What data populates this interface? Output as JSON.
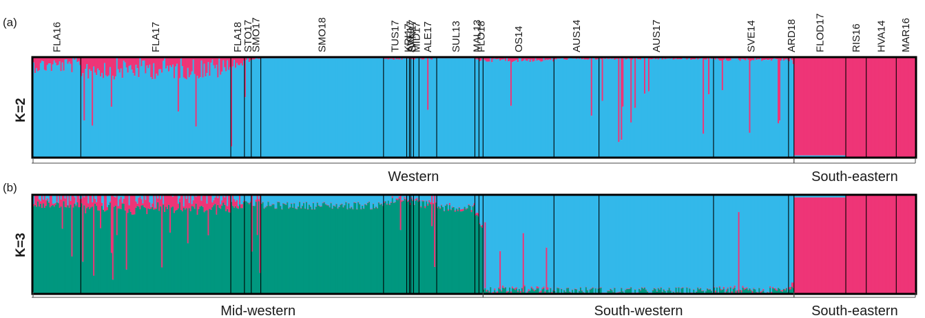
{
  "panel_labels": [
    "(a)",
    "(b)"
  ],
  "colors": {
    "blue": "#33b8ea",
    "pink": "#ee3577",
    "green": "#00977f",
    "frame": "#000000"
  },
  "chart_data": {
    "type": "bar",
    "stacked": true,
    "description_source": "STRUCTURE admixture barplot, two panels sharing population order",
    "populations": [
      {
        "name": "FLA16",
        "n": 35
      },
      {
        "name": "FLA17",
        "n": 110
      },
      {
        "name": "FLA18",
        "n": 10
      },
      {
        "name": "STO17",
        "n": 5
      },
      {
        "name": "SMO17",
        "n": 7
      },
      {
        "name": "SMO18",
        "n": 90
      },
      {
        "name": "TUS17",
        "n": 17
      },
      {
        "name": "KRI17",
        "n": 2
      },
      {
        "name": "AVE17",
        "n": 1
      },
      {
        "name": "SAN17",
        "n": 2
      },
      {
        "name": "MID17",
        "n": 4
      },
      {
        "name": "ALE17",
        "n": 13
      },
      {
        "name": "SUL13",
        "n": 28
      },
      {
        "name": "MAL13",
        "n": 3
      },
      {
        "name": "FLO18",
        "n": 3
      },
      {
        "name": "OS14",
        "n": 52
      },
      {
        "name": "AUS14",
        "n": 33
      },
      {
        "name": "AUS17",
        "n": 84
      },
      {
        "name": "SVE14",
        "n": 55
      },
      {
        "name": "ARD18",
        "n": 4
      },
      {
        "name": "FLOD17",
        "n": 38
      },
      {
        "name": "RIS16",
        "n": 15
      },
      {
        "name": "HVA14",
        "n": 22
      },
      {
        "name": "MAR16",
        "n": 14
      }
    ],
    "panels": [
      {
        "label": "K=2",
        "clusters": [
          "blue",
          "pink"
        ],
        "population_means": [
          [
            0.93,
            0.07
          ],
          [
            0.9,
            0.1
          ],
          [
            0.95,
            0.05
          ],
          [
            0.98,
            0.02
          ],
          [
            0.99,
            0.01
          ],
          [
            0.995,
            0.005
          ],
          [
            0.99,
            0.01
          ],
          [
            0.99,
            0.01
          ],
          [
            0.99,
            0.01
          ],
          [
            0.99,
            0.01
          ],
          [
            0.99,
            0.01
          ],
          [
            0.99,
            0.01
          ],
          [
            0.995,
            0.005
          ],
          [
            0.99,
            0.01
          ],
          [
            0.98,
            0.02
          ],
          [
            0.98,
            0.02
          ],
          [
            0.99,
            0.01
          ],
          [
            0.99,
            0.01
          ],
          [
            0.985,
            0.015
          ],
          [
            0.97,
            0.03
          ],
          [
            0.015,
            0.985
          ],
          [
            0.0,
            1.0
          ],
          [
            0.0,
            1.0
          ],
          [
            0.0,
            1.0
          ]
        ],
        "groups": [
          {
            "label": "Western",
            "from": "FLA16",
            "to": "ARD18"
          },
          {
            "label": "South-eastern",
            "from": "FLOD17",
            "to": "MAR16"
          }
        ]
      },
      {
        "label": "K=3",
        "clusters": [
          "blue",
          "pink",
          "green"
        ],
        "population_means": [
          [
            0.02,
            0.06,
            0.92
          ],
          [
            0.02,
            0.09,
            0.89
          ],
          [
            0.05,
            0.05,
            0.9
          ],
          [
            0.07,
            0.01,
            0.92
          ],
          [
            0.07,
            0.01,
            0.92
          ],
          [
            0.1,
            0.005,
            0.895
          ],
          [
            0.05,
            0.01,
            0.94
          ],
          [
            0.05,
            0.01,
            0.94
          ],
          [
            0.05,
            0.01,
            0.94
          ],
          [
            0.05,
            0.01,
            0.94
          ],
          [
            0.06,
            0.01,
            0.93
          ],
          [
            0.08,
            0.01,
            0.91
          ],
          [
            0.12,
            0.01,
            0.87
          ],
          [
            0.2,
            0.02,
            0.78
          ],
          [
            0.3,
            0.02,
            0.68
          ],
          [
            0.96,
            0.01,
            0.03
          ],
          [
            0.97,
            0.005,
            0.025
          ],
          [
            0.975,
            0.005,
            0.02
          ],
          [
            0.97,
            0.01,
            0.02
          ],
          [
            0.9,
            0.03,
            0.07
          ],
          [
            0.02,
            0.98,
            0.0
          ],
          [
            0.0,
            1.0,
            0.0
          ],
          [
            0.0,
            1.0,
            0.0
          ],
          [
            0.0,
            1.0,
            0.0
          ]
        ],
        "groups": [
          {
            "label": "Mid-western",
            "from": "FLA16",
            "to": "FLO18"
          },
          {
            "label": "South-western",
            "from": "OS14",
            "to": "ARD18"
          },
          {
            "label": "South-eastern",
            "from": "FLOD17",
            "to": "MAR16"
          }
        ]
      }
    ],
    "ylim": [
      0,
      1
    ]
  }
}
